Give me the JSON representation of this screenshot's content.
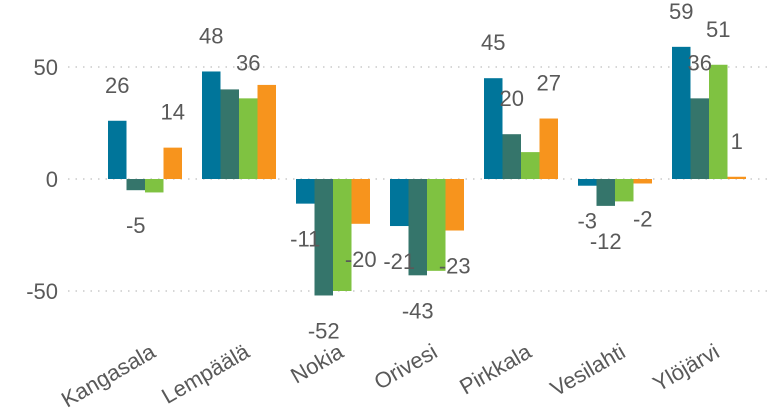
{
  "chart_data": {
    "type": "bar",
    "categories": [
      "Kangasala",
      "Lempäälä",
      "Nokia",
      "Orivesi",
      "Pirkkala",
      "Vesilahti",
      "Ylöjärvi"
    ],
    "series": [
      {
        "values": [
          26,
          48,
          -11,
          -21,
          45,
          -3,
          59
        ],
        "color": "#00759a",
        "labels": [
          "26",
          "48",
          "-11",
          "-21",
          "45",
          "-3",
          "59"
        ]
      },
      {
        "values": [
          -5,
          40,
          -52,
          -43,
          20,
          -12,
          36
        ],
        "color": "#35756b",
        "labels": [
          "-5",
          "",
          "-52",
          "-43",
          "20",
          "-12",
          "36"
        ]
      },
      {
        "values": [
          -6,
          36,
          -50,
          -41,
          12,
          -10,
          51
        ],
        "color": "#7fc241",
        "labels": [
          "",
          "36",
          "",
          "",
          "",
          "",
          "51"
        ]
      },
      {
        "values": [
          14,
          42,
          -20,
          -23,
          27,
          -2,
          1
        ],
        "color": "#f7941d",
        "labels": [
          "14",
          "",
          "-20",
          "-23",
          "27",
          "-2",
          "1"
        ]
      }
    ],
    "yticks": [
      50,
      0,
      -50
    ],
    "ylim": [
      -70,
      72
    ],
    "grid": true,
    "legend": "none"
  }
}
